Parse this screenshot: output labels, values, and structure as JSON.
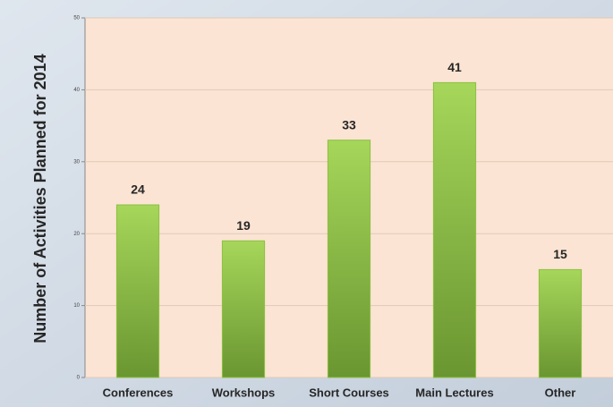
{
  "chart_data": {
    "type": "bar",
    "y_label": "Number of Activities Planned for 2014",
    "categories": [
      "Conferences",
      "Workshops",
      "Short Courses",
      "Main Lectures",
      "Other"
    ],
    "values": [
      24,
      19,
      33,
      41,
      15
    ],
    "color": "#8cc043",
    "ylim": [
      0,
      50
    ],
    "yticks": [
      0,
      10,
      20,
      30,
      40,
      50
    ],
    "grid": true
  }
}
